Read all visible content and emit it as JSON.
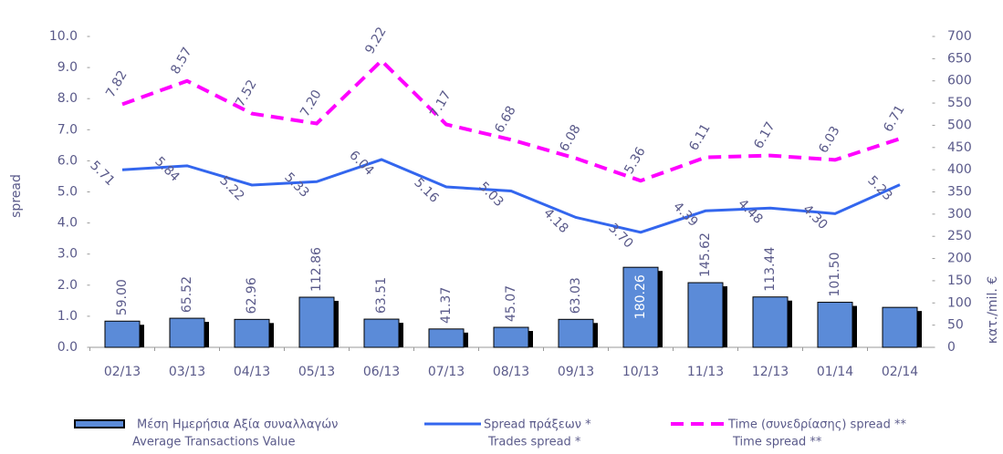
{
  "chart_data": {
    "type": "bar_line",
    "y_label": "spread",
    "y2_label": "κατ./mil. €",
    "categories": [
      "02/13",
      "03/13",
      "04/13",
      "05/13",
      "06/13",
      "07/13",
      "08/13",
      "09/13",
      "10/13",
      "11/13",
      "12/13",
      "01/14",
      "02/14"
    ],
    "ylim": [
      0,
      10
    ],
    "yticks": [
      {
        "value": 0,
        "label": "0.0"
      },
      {
        "value": 1,
        "label": "1.0"
      },
      {
        "value": 2,
        "label": "2.0"
      },
      {
        "value": 3,
        "label": "3.0"
      },
      {
        "value": 4,
        "label": "4.0"
      },
      {
        "value": 5,
        "label": "5.0"
      },
      {
        "value": 6,
        "label": "6.0"
      },
      {
        "value": 7,
        "label": "7.0"
      },
      {
        "value": 8,
        "label": "8.0"
      },
      {
        "value": 9,
        "label": "9.0"
      },
      {
        "value": 10,
        "label": "10.0"
      }
    ],
    "y2lim": [
      0,
      700
    ],
    "y2ticks": [
      0,
      50,
      100,
      150,
      200,
      250,
      300,
      350,
      400,
      450,
      500,
      550,
      600,
      650,
      700
    ],
    "series": [
      {
        "name": "Μέση Ημερήσια Αξία συναλλαγών",
        "name_en": "Average Transactions Value",
        "kind": "bar",
        "axis": "y2",
        "color": "#5b8bd8",
        "values": [
          59.0,
          65.52,
          62.96,
          112.86,
          63.51,
          41.37,
          45.07,
          63.03,
          180.26,
          145.62,
          113.44,
          101.5,
          90
        ],
        "value_labels": [
          "59.00",
          "65.52",
          "62.96",
          "112.86",
          "63.51",
          "41.37",
          "45.07",
          "63.03",
          "180.26",
          "145.62",
          "113.44",
          "101.50",
          null
        ]
      },
      {
        "name": "Spread πράξεων *",
        "name_en": "Trades spread *",
        "kind": "line",
        "axis": "y",
        "color": "#3366ee",
        "dashed": false,
        "values": [
          5.71,
          5.84,
          5.22,
          5.33,
          6.04,
          5.16,
          5.03,
          4.18,
          3.7,
          4.39,
          4.48,
          4.3,
          5.23
        ],
        "value_labels": [
          "5.71",
          "5.84",
          "5.22",
          "5.33",
          "6.04",
          "5.16",
          "5.03",
          "4.18",
          "3.70",
          "4.39",
          "4.48",
          "4.30",
          "5.23"
        ]
      },
      {
        "name": "Time  (συνεδρίασης) spread **",
        "name_en": "Time spread **",
        "kind": "line",
        "axis": "y",
        "color": "#ff00ff",
        "dashed": true,
        "values": [
          7.82,
          8.57,
          7.52,
          7.2,
          9.22,
          7.17,
          6.68,
          6.08,
          5.36,
          6.11,
          6.17,
          6.03,
          6.71
        ],
        "value_labels": [
          "7.82",
          "8.57",
          "7.52",
          "7.20",
          "9.22",
          "7.17",
          "6.68",
          "6.08",
          "5.36",
          "6.11",
          "6.17",
          "6.03",
          "6.71"
        ]
      }
    ]
  }
}
